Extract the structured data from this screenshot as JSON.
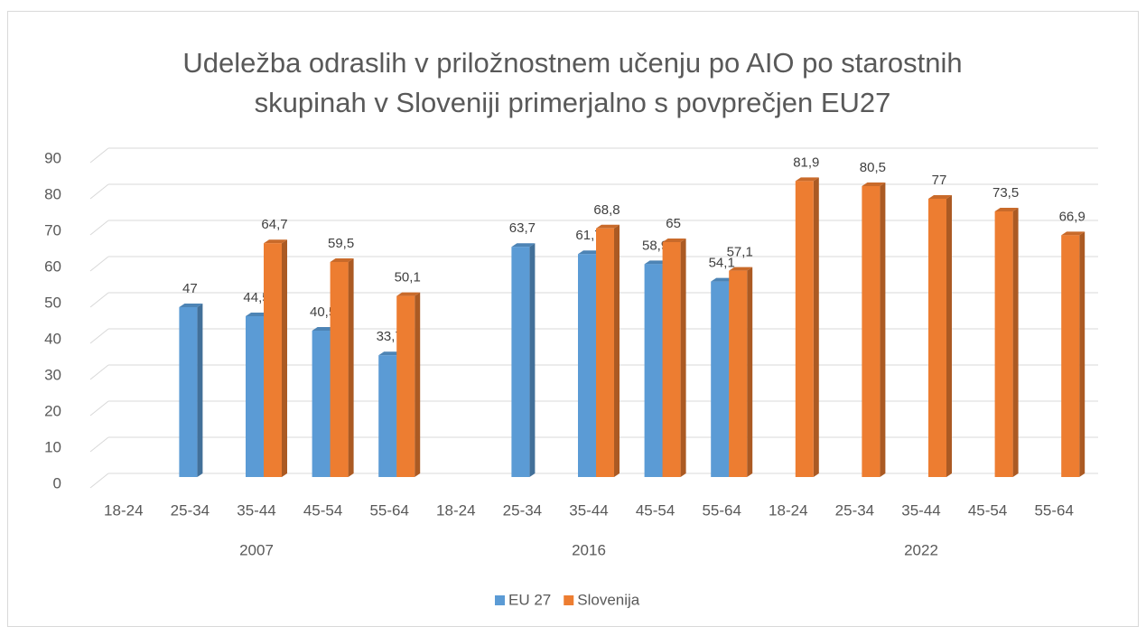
{
  "chart_data": {
    "type": "bar",
    "title": [
      "Udeležba odraslih v priložnostnem učenju po AIO po starostnih",
      "skupinah v Sloveniji primerjalno s povprečjen EU27"
    ],
    "categories": [
      "18-24",
      "25-34",
      "35-44",
      "45-54",
      "55-64",
      "18-24",
      "25-34",
      "35-44",
      "45-54",
      "55-64",
      "18-24",
      "25-34",
      "35-44",
      "45-54",
      "55-64"
    ],
    "groups": [
      "2007",
      "2016",
      "2022"
    ],
    "series": [
      {
        "name": "EU 27",
        "color": "#5b9bd5",
        "values": [
          null,
          47,
          44.5,
          40.5,
          33.7,
          null,
          63.7,
          61.7,
          58.9,
          54.1,
          null,
          null,
          null,
          null,
          null
        ],
        "value_labels": [
          null,
          "47",
          "44,5",
          "40,5",
          "33,7",
          null,
          "63,7",
          "61,7",
          "58,9",
          "54,1",
          null,
          null,
          null,
          null,
          null
        ]
      },
      {
        "name": "Slovenija",
        "color": "#ed7d31",
        "values": [
          null,
          null,
          64.7,
          59.5,
          50.1,
          null,
          null,
          68.8,
          65,
          57.1,
          81.9,
          80.5,
          77,
          73.5,
          66.9
        ],
        "value_labels": [
          null,
          null,
          "64,7",
          "59,5",
          "50,1",
          null,
          null,
          "68,8",
          "65",
          "57,1",
          "81,9",
          "80,5",
          "77",
          "73,5",
          "66,9"
        ]
      }
    ],
    "ylim": [
      0,
      90
    ],
    "yticks": [
      0,
      10,
      20,
      30,
      40,
      50,
      60,
      70,
      80,
      90
    ],
    "grid": true,
    "legend": "bottom"
  }
}
